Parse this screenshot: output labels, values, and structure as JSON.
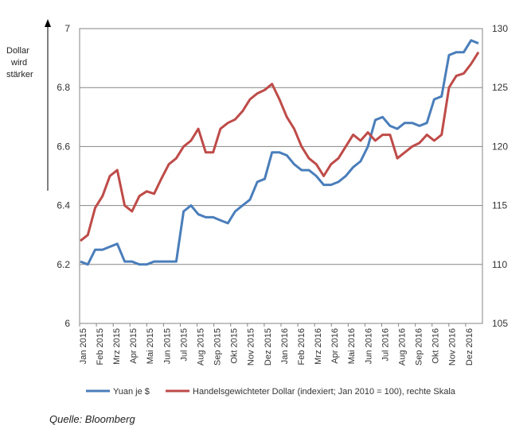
{
  "annotation": {
    "line1": "Dollar",
    "line2": "wird",
    "line3": "stärker"
  },
  "source": "Quelle: Bloomberg",
  "chart_data": {
    "type": "line",
    "x_labels": [
      "Jan 2015",
      "Feb 2015",
      "Mrz 2015",
      "Apr 2015",
      "Mai 2015",
      "Jun 2015",
      "Jul 2015",
      "Aug 2015",
      "Sep 2015",
      "Okt 2015",
      "Nov 2015",
      "Dez 2015",
      "Jan 2016",
      "Feb 2016",
      "Mrz 2016",
      "Apr 2016",
      "Mai 2016",
      "Jun 2016",
      "Jul 2016",
      "Aug 2016",
      "Sep 2016",
      "Okt 2016",
      "Nov 2016",
      "Dez 2016"
    ],
    "y_left": {
      "min": 6,
      "max": 7,
      "ticks": [
        "6",
        "6.2",
        "6.4",
        "6.6",
        "6.8",
        "7"
      ]
    },
    "y_right": {
      "min": 105,
      "max": 130,
      "ticks": [
        "105",
        "110",
        "115",
        "120",
        "125",
        "130"
      ]
    },
    "grid": true,
    "legend_position": "bottom",
    "series": [
      {
        "name": "Yuan je $",
        "axis": "left",
        "color": "#4a7ebb",
        "values": [
          6.21,
          6.2,
          6.25,
          6.25,
          6.26,
          6.27,
          6.21,
          6.21,
          6.2,
          6.2,
          6.21,
          6.21,
          6.21,
          6.21,
          6.38,
          6.4,
          6.37,
          6.36,
          6.36,
          6.35,
          6.34,
          6.38,
          6.4,
          6.42,
          6.48,
          6.49,
          6.58,
          6.58,
          6.57,
          6.54,
          6.52,
          6.52,
          6.5,
          6.47,
          6.47,
          6.48,
          6.5,
          6.53,
          6.55,
          6.6,
          6.69,
          6.7,
          6.67,
          6.66,
          6.68,
          6.68,
          6.67,
          6.68,
          6.76,
          6.77,
          6.91,
          6.92,
          6.92,
          6.96,
          6.95
        ]
      },
      {
        "name": "Handelsgewichteter Dollar (indexiert; Jan 2010 = 100), rechte Skala",
        "axis": "right",
        "color": "#be4b48",
        "values": [
          112.0,
          112.5,
          114.8,
          115.8,
          117.5,
          118.0,
          115.0,
          114.5,
          115.8,
          116.2,
          116.0,
          117.3,
          118.5,
          119.0,
          120.0,
          120.5,
          121.5,
          119.5,
          119.5,
          121.5,
          122.0,
          122.3,
          123.0,
          124.0,
          124.5,
          124.8,
          125.3,
          124.0,
          122.5,
          121.5,
          120.0,
          119.0,
          118.5,
          117.5,
          118.5,
          119.0,
          120.0,
          121.0,
          120.5,
          121.2,
          120.5,
          121.0,
          121.0,
          119.0,
          119.5,
          120.0,
          120.3,
          121.0,
          120.5,
          121.0,
          125.0,
          126.0,
          126.2,
          127.0,
          128.0
        ]
      }
    ]
  }
}
